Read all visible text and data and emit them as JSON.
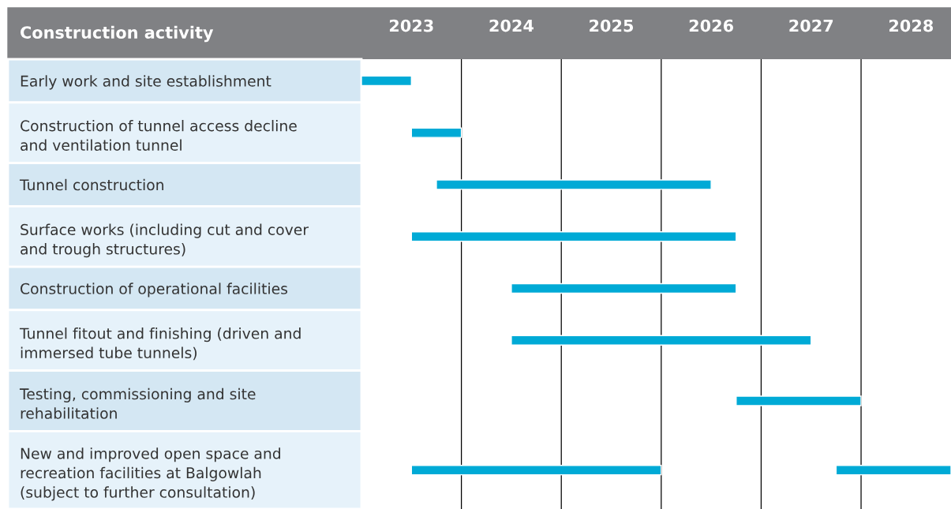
{
  "chart_data": {
    "type": "bar",
    "orientation": "horizontal",
    "ylabel": "Construction activity",
    "categories": [
      "Early work and site establishment",
      "Construction of tunnel access decline\nand ventilation tunnel",
      "Tunnel construction",
      "Surface works (including cut and cover\nand trough structures)",
      "Construction of operational facilities",
      "Tunnel fitout and finishing (driven and\nimmersed tube tunnels)",
      "Testing, commissioning and site\nrehabilitation",
      "New and improved open space and\nrecreation facilities at Balgowlah\n(subject to further consultation)"
    ],
    "series": [
      {
        "color": "#00aad6",
        "base": [
          2023.0,
          2023.5,
          2023.75,
          2023.5,
          2024.5,
          2024.5,
          2026.75,
          2023.5
        ],
        "values": [
          0.5,
          0.5,
          2.75,
          3.25,
          2.25,
          3.0,
          1.25,
          2.5
        ]
      },
      {
        "color": "#00aad6",
        "base": [
          null,
          null,
          null,
          null,
          null,
          null,
          null,
          2027.75
        ],
        "values": [
          null,
          null,
          null,
          null,
          null,
          null,
          null,
          1.15
        ]
      }
    ],
    "xlim": [
      2023,
      2028.9
    ],
    "xticks": [
      {
        "value": 2023.5,
        "label": "2023"
      },
      {
        "value": 2024.5,
        "label": "2024"
      },
      {
        "value": 2025.5,
        "label": "2025"
      },
      {
        "value": 2026.5,
        "label": "2026"
      },
      {
        "value": 2027.5,
        "label": "2027"
      },
      {
        "value": 2028.5,
        "label": "2028"
      }
    ],
    "ref_lines": [
      {
        "axis": "x",
        "value": 2024,
        "color": "#000000"
      },
      {
        "axis": "x",
        "value": 2025,
        "color": "#000000"
      },
      {
        "axis": "x",
        "value": 2026,
        "color": "#000000"
      },
      {
        "axis": "x",
        "value": 2027,
        "color": "#000000"
      },
      {
        "axis": "x",
        "value": 2028,
        "color": "#000000"
      }
    ]
  }
}
